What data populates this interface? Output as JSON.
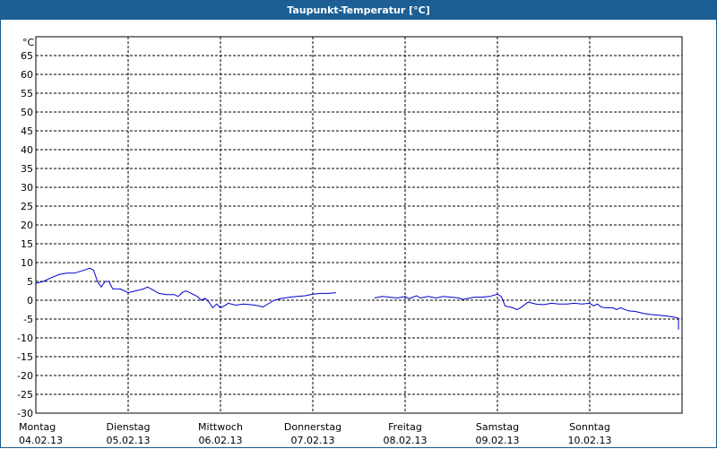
{
  "window": {
    "title": "Taupunkt-Temperatur [°C]"
  },
  "chart_data": {
    "type": "line",
    "title": "Taupunkt-Temperatur [°C]",
    "ylabel": "°C",
    "ylim": [
      -30,
      70
    ],
    "yticks": [
      65,
      60,
      55,
      50,
      45,
      40,
      35,
      30,
      25,
      20,
      15,
      10,
      5,
      0,
      -5,
      -10,
      -15,
      -20,
      -25,
      -30
    ],
    "x_categories": [
      {
        "day": "Montag",
        "date": "04.02.13"
      },
      {
        "day": "Dienstag",
        "date": "05.02.13"
      },
      {
        "day": "Mittwoch",
        "date": "06.02.13"
      },
      {
        "day": "Donnerstag",
        "date": "07.02.13"
      },
      {
        "day": "Freitag",
        "date": "08.02.13"
      },
      {
        "day": "Samstag",
        "date": "09.02.13"
      },
      {
        "day": "Sonntag",
        "date": "10.02.13"
      }
    ],
    "grid": true,
    "colors": {
      "line": "#0000cc",
      "grid": "#000000",
      "title_bar": "#1b5f95"
    },
    "series": [
      {
        "segments": [
          [
            [
              "04.02.13 00:00",
              4.5
            ],
            [
              "04.02.13 02:00",
              5.0
            ],
            [
              "04.02.13 04:00",
              6.0
            ],
            [
              "04.02.13 06:00",
              6.8
            ],
            [
              "04.02.13 08:00",
              7.2
            ],
            [
              "04.02.13 10:00",
              7.2
            ],
            [
              "04.02.13 12:00",
              7.8
            ],
            [
              "04.02.13 14:00",
              8.5
            ],
            [
              "04.02.13 15:00",
              8.0
            ],
            [
              "04.02.13 16:00",
              5.0
            ],
            [
              "04.02.13 17:00",
              3.5
            ],
            [
              "04.02.13 18:00",
              5.0
            ],
            [
              "04.02.13 19:00",
              5.0
            ],
            [
              "04.02.13 20:00",
              3.0
            ],
            [
              "04.02.13 22:00",
              3.0
            ],
            [
              "05.02.13 00:00",
              2.0
            ],
            [
              "05.02.13 02:00",
              2.5
            ],
            [
              "05.02.13 04:00",
              3.0
            ],
            [
              "05.02.13 05:00",
              3.5
            ],
            [
              "05.02.13 06:00",
              3.0
            ],
            [
              "05.02.13 08:00",
              1.8
            ],
            [
              "05.02.13 10:00",
              1.5
            ],
            [
              "05.02.13 12:00",
              1.5
            ],
            [
              "05.02.13 13:00",
              1.0
            ],
            [
              "05.02.13 14:00",
              2.0
            ],
            [
              "05.02.13 15:00",
              2.5
            ],
            [
              "05.02.13 16:00",
              2.0
            ],
            [
              "05.02.13 18:00",
              1.0
            ],
            [
              "05.02.13 19:00",
              0.0
            ],
            [
              "05.02.13 20:00",
              0.5
            ],
            [
              "05.02.13 21:00",
              -0.5
            ],
            [
              "05.02.13 22:00",
              -2.0
            ],
            [
              "05.02.13 23:00",
              -1.0
            ],
            [
              "06.02.13 00:00",
              -2.0
            ],
            [
              "06.02.13 01:00",
              -1.5
            ],
            [
              "06.02.13 02:00",
              -0.8
            ],
            [
              "06.02.13 04:00",
              -1.3
            ],
            [
              "06.02.13 06:00",
              -1.0
            ],
            [
              "06.02.13 08:00",
              -1.2
            ],
            [
              "06.02.13 10:00",
              -1.5
            ],
            [
              "06.02.13 11:00",
              -1.8
            ],
            [
              "06.02.13 12:00",
              -1.2
            ],
            [
              "06.02.13 14:00",
              0.0
            ],
            [
              "06.02.13 16:00",
              0.5
            ],
            [
              "06.02.13 18:00",
              0.8
            ],
            [
              "06.02.13 20:00",
              1.0
            ],
            [
              "06.02.13 22:00",
              1.2
            ],
            [
              "06.02.13 24:00",
              1.6
            ],
            [
              "07.02.13 02:00",
              1.8
            ],
            [
              "07.02.13 04:00",
              1.8
            ],
            [
              "07.02.13 06:00",
              2.0
            ]
          ],
          [
            [
              "07.02.13 16:00",
              0.6
            ],
            [
              "07.02.13 18:00",
              1.0
            ],
            [
              "07.02.13 20:00",
              0.8
            ],
            [
              "07.02.13 22:00",
              0.6
            ],
            [
              "08.02.13 00:00",
              1.0
            ],
            [
              "08.02.13 01:00",
              0.4
            ],
            [
              "08.02.13 02:00",
              0.8
            ],
            [
              "08.02.13 03:00",
              1.2
            ],
            [
              "08.02.13 04:00",
              0.6
            ],
            [
              "08.02.13 06:00",
              1.0
            ],
            [
              "08.02.13 08:00",
              0.6
            ],
            [
              "08.02.13 10:00",
              1.0
            ],
            [
              "08.02.13 12:00",
              0.8
            ],
            [
              "08.02.13 14:00",
              0.6
            ],
            [
              "08.02.13 15:00",
              0.2
            ],
            [
              "08.02.13 16:00",
              0.4
            ],
            [
              "08.02.13 18:00",
              0.8
            ],
            [
              "08.02.13 20:00",
              0.8
            ],
            [
              "08.02.13 22:00",
              1.0
            ],
            [
              "09.02.13 00:00",
              1.6
            ],
            [
              "09.02.13 01:00",
              1.0
            ],
            [
              "09.02.13 02:00",
              -1.5
            ],
            [
              "09.02.13 04:00",
              -2.0
            ],
            [
              "09.02.13 05:00",
              -2.5
            ],
            [
              "09.02.13 06:00",
              -2.0
            ],
            [
              "09.02.13 08:00",
              -0.5
            ],
            [
              "09.02.13 10:00",
              -1.0
            ],
            [
              "09.02.13 12:00",
              -1.2
            ],
            [
              "09.02.13 14:00",
              -0.8
            ],
            [
              "09.02.13 16:00",
              -1.0
            ],
            [
              "09.02.13 18:00",
              -1.0
            ],
            [
              "09.02.13 20:00",
              -0.8
            ],
            [
              "09.02.13 22:00",
              -1.0
            ],
            [
              "09.02.13 24:00",
              -0.8
            ],
            [
              "10.02.13 01:00",
              -1.5
            ],
            [
              "10.02.13 02:00",
              -1.0
            ],
            [
              "10.02.13 03:00",
              -1.8
            ],
            [
              "10.02.13 04:00",
              -2.0
            ],
            [
              "10.02.13 06:00",
              -2.0
            ],
            [
              "10.02.13 07:00",
              -2.5
            ],
            [
              "10.02.13 08:00",
              -2.0
            ],
            [
              "10.02.13 10:00",
              -2.8
            ],
            [
              "10.02.13 12:00",
              -3.0
            ],
            [
              "10.02.13 14:00",
              -3.5
            ],
            [
              "10.02.13 16:00",
              -3.8
            ],
            [
              "10.02.13 18:00",
              -4.0
            ],
            [
              "10.02.13 20:00",
              -4.2
            ],
            [
              "10.02.13 22:00",
              -4.5
            ],
            [
              "10.02.13 24:00",
              -4.8
            ],
            [
              "11.02.13 02:00",
              -5.0
            ],
            [
              "11.02.13 04:00",
              -5.2
            ],
            [
              "11.02.13 06:00",
              -5.0
            ],
            [
              "11.02.13 07:00",
              -5.5
            ],
            [
              "11.02.13 08:00",
              -6.0
            ],
            [
              "11.02.13 09:00",
              -5.5
            ],
            [
              "11.02.13 10:00",
              -6.0
            ],
            [
              "11.02.13 12:00",
              -5.8
            ],
            [
              "11.02.13 14:00",
              -6.2
            ],
            [
              "11.02.13 16:00",
              -7.0
            ],
            [
              "11.02.13 18:00",
              -7.2
            ],
            [
              "11.02.13 20:00",
              -7.5
            ],
            [
              "11.02.13 22:00",
              -7.8
            ]
          ]
        ]
      }
    ]
  }
}
